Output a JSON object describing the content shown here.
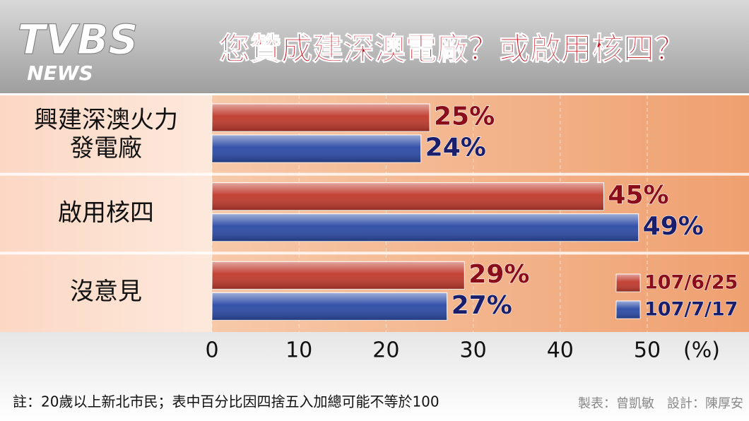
{
  "logo": {
    "main": "TVBS",
    "sub": "NEWS"
  },
  "chart_data": {
    "type": "hbar",
    "title": "您贊成建深澳電廠？或啟用核四？",
    "categories": [
      "興建深澳火力\n發電廠",
      "啟用核四",
      "沒意見"
    ],
    "series": [
      {
        "name": "107/6/25",
        "color": "#c0392b",
        "label_color": "#8b0d1a",
        "values": [
          25,
          45,
          29
        ],
        "value_labels": [
          "25%",
          "45%",
          "29%"
        ]
      },
      {
        "name": "107/7/17",
        "color": "#2b4aa6",
        "label_color": "#1b1f6b",
        "values": [
          24,
          49,
          27
        ],
        "value_labels": [
          "24%",
          "49%",
          "27%"
        ]
      }
    ],
    "xlim": [
      0,
      50
    ],
    "xticks": [
      0,
      10,
      20,
      30,
      40,
      50
    ],
    "x_label": "(%)",
    "grid": true,
    "legend": "lower right",
    "note": "註：20歲以上新北市民；表中百分比因四捨五入加總可能不等於100",
    "credits": "製表：曾凱敏　設計：陳厚安"
  }
}
